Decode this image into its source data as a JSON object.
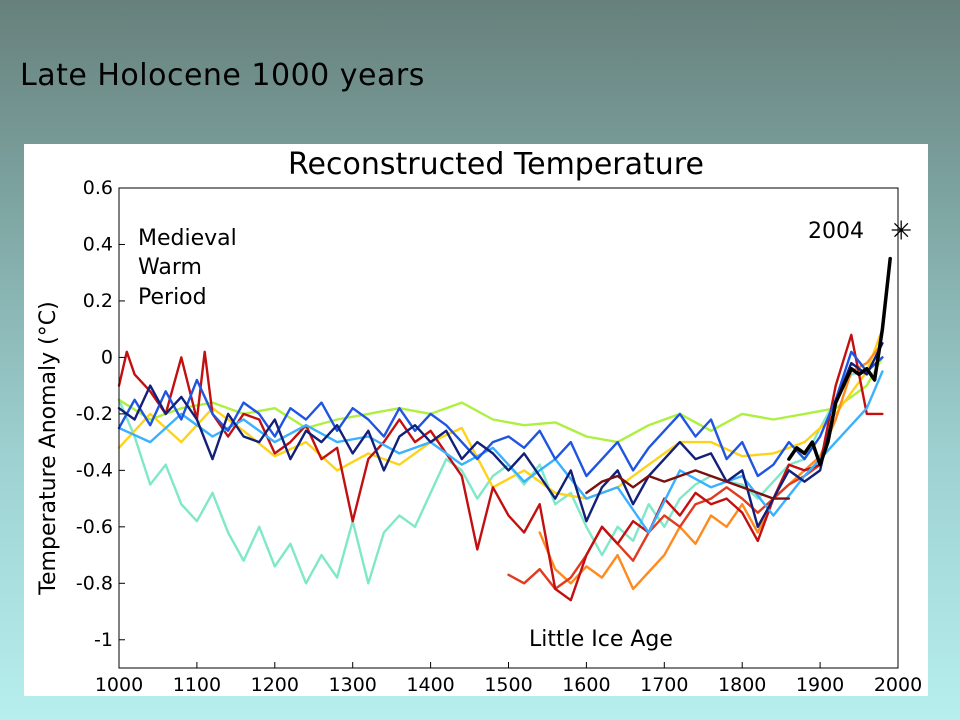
{
  "slide": {
    "title": "Late Holocene 1000 years"
  },
  "colors": {
    "background_top": "#67807c",
    "background_bottom": "#b7eeee",
    "panel": "#ffffff"
  },
  "chart_data": {
    "type": "line",
    "title": "Reconstructed Temperature",
    "xlabel": "",
    "ylabel": "Temperature Anomaly (°C)",
    "xlim": [
      1000,
      2000
    ],
    "ylim": [
      -1.1,
      0.6
    ],
    "x_ticks": [
      "1000",
      "1100",
      "1200",
      "1300",
      "1400",
      "1500",
      "1600",
      "1700",
      "1800",
      "1900",
      "2000"
    ],
    "y_ticks": [
      "0.6",
      "0.4",
      "0.2",
      "0",
      "-0.2",
      "-0.4",
      "-0.6",
      "-0.8",
      "-1"
    ],
    "grid": false,
    "annotations": {
      "medieval": [
        "Medieval",
        "Warm",
        "Period"
      ],
      "little_ice_age": "Little Ice Age",
      "marker_label": "2004",
      "marker_symbol": "✳",
      "marker_point": {
        "x": 2004,
        "y": 0.45
      }
    },
    "series": [
      {
        "color": "#7fe8c8",
        "x": [
          1000,
          1020,
          1040,
          1060,
          1080,
          1100,
          1120,
          1140,
          1160,
          1180,
          1200,
          1220,
          1240,
          1260,
          1280,
          1300,
          1320,
          1340,
          1360,
          1380,
          1400,
          1420,
          1440,
          1460,
          1480,
          1500,
          1520,
          1540,
          1560,
          1580,
          1600,
          1620,
          1640,
          1660,
          1680,
          1700,
          1720,
          1740,
          1760,
          1780,
          1800,
          1820,
          1840,
          1860,
          1880,
          1900,
          1920,
          1940,
          1960,
          1980
        ],
        "y": [
          -0.15,
          -0.28,
          -0.45,
          -0.38,
          -0.52,
          -0.58,
          -0.48,
          -0.62,
          -0.72,
          -0.6,
          -0.74,
          -0.66,
          -0.8,
          -0.7,
          -0.78,
          -0.58,
          -0.8,
          -0.62,
          -0.56,
          -0.6,
          -0.48,
          -0.36,
          -0.4,
          -0.5,
          -0.42,
          -0.38,
          -0.45,
          -0.38,
          -0.52,
          -0.48,
          -0.6,
          -0.7,
          -0.6,
          -0.65,
          -0.52,
          -0.6,
          -0.5,
          -0.45,
          -0.42,
          -0.44,
          -0.45,
          -0.5,
          -0.44,
          -0.38,
          -0.36,
          -0.25,
          -0.15,
          -0.06,
          -0.05,
          0.0
        ]
      },
      {
        "color": "#adf040",
        "x": [
          1000,
          1040,
          1080,
          1120,
          1160,
          1200,
          1240,
          1280,
          1320,
          1360,
          1400,
          1440,
          1480,
          1520,
          1560,
          1600,
          1640,
          1680,
          1720,
          1760,
          1800,
          1840,
          1880,
          1920,
          1960,
          1980
        ],
        "y": [
          -0.15,
          -0.22,
          -0.18,
          -0.16,
          -0.2,
          -0.18,
          -0.25,
          -0.22,
          -0.2,
          -0.18,
          -0.2,
          -0.16,
          -0.22,
          -0.24,
          -0.23,
          -0.28,
          -0.3,
          -0.24,
          -0.2,
          -0.26,
          -0.2,
          -0.22,
          -0.2,
          -0.18,
          -0.1,
          0.0
        ]
      },
      {
        "color": "#ffd21a",
        "x": [
          1000,
          1040,
          1080,
          1120,
          1160,
          1200,
          1240,
          1280,
          1320,
          1360,
          1400,
          1440,
          1480,
          1520,
          1560,
          1600,
          1640,
          1680,
          1720,
          1760,
          1800,
          1840,
          1880,
          1920,
          1960,
          1980
        ],
        "y": [
          -0.32,
          -0.2,
          -0.3,
          -0.18,
          -0.26,
          -0.35,
          -0.3,
          -0.4,
          -0.34,
          -0.38,
          -0.3,
          -0.25,
          -0.46,
          -0.4,
          -0.48,
          -0.5,
          -0.46,
          -0.38,
          -0.3,
          -0.3,
          -0.35,
          -0.34,
          -0.3,
          -0.2,
          -0.05,
          0.1
        ]
      },
      {
        "color": "#ff8a1f",
        "x": [
          1540,
          1560,
          1580,
          1600,
          1620,
          1640,
          1660,
          1680,
          1700,
          1720,
          1740,
          1760,
          1780,
          1800,
          1820,
          1840,
          1860,
          1880,
          1900,
          1920,
          1940,
          1960,
          1980
        ],
        "y": [
          -0.62,
          -0.75,
          -0.8,
          -0.74,
          -0.78,
          -0.7,
          -0.82,
          -0.76,
          -0.7,
          -0.6,
          -0.66,
          -0.56,
          -0.6,
          -0.52,
          -0.62,
          -0.5,
          -0.45,
          -0.4,
          -0.35,
          -0.22,
          -0.05,
          -0.02,
          0.05
        ]
      },
      {
        "color": "#e03b1f",
        "x": [
          1500,
          1520,
          1540,
          1560,
          1580,
          1600,
          1620,
          1640,
          1660,
          1680,
          1700,
          1720,
          1740,
          1760,
          1780,
          1800,
          1820,
          1840,
          1860,
          1880,
          1900
        ],
        "y": [
          -0.77,
          -0.8,
          -0.75,
          -0.82,
          -0.78,
          -0.7,
          -0.6,
          -0.66,
          -0.72,
          -0.62,
          -0.56,
          -0.6,
          -0.52,
          -0.5,
          -0.46,
          -0.5,
          -0.55,
          -0.5,
          -0.45,
          -0.42,
          -0.38
        ]
      },
      {
        "color": "#c21010",
        "x": [
          1000,
          1010,
          1020,
          1040,
          1060,
          1080,
          1100,
          1110,
          1120,
          1140,
          1160,
          1180,
          1200,
          1220,
          1240,
          1260,
          1280,
          1300,
          1320,
          1340,
          1360,
          1380,
          1400,
          1420,
          1440,
          1460,
          1480,
          1500,
          1520,
          1540,
          1560,
          1580,
          1600,
          1620,
          1640,
          1660,
          1680,
          1700,
          1720,
          1740,
          1760,
          1780,
          1800,
          1820,
          1840,
          1860,
          1880,
          1900,
          1920,
          1940,
          1960,
          1980
        ],
        "y": [
          -0.1,
          0.02,
          -0.06,
          -0.12,
          -0.2,
          0.0,
          -0.22,
          0.02,
          -0.2,
          -0.28,
          -0.2,
          -0.22,
          -0.34,
          -0.3,
          -0.24,
          -0.36,
          -0.32,
          -0.58,
          -0.36,
          -0.3,
          -0.22,
          -0.3,
          -0.26,
          -0.34,
          -0.42,
          -0.68,
          -0.46,
          -0.56,
          -0.62,
          -0.52,
          -0.82,
          -0.86,
          -0.7,
          -0.6,
          -0.66,
          -0.58,
          -0.62,
          -0.5,
          -0.56,
          -0.48,
          -0.52,
          -0.5,
          -0.55,
          -0.65,
          -0.5,
          -0.38,
          -0.4,
          -0.38,
          -0.1,
          0.08,
          -0.2,
          -0.2
        ]
      },
      {
        "color": "#3ab0ff",
        "x": [
          1000,
          1040,
          1080,
          1120,
          1160,
          1200,
          1240,
          1280,
          1320,
          1360,
          1400,
          1440,
          1480,
          1520,
          1560,
          1600,
          1640,
          1680,
          1720,
          1760,
          1800,
          1840,
          1880,
          1920,
          1960,
          1980
        ],
        "y": [
          -0.25,
          -0.3,
          -0.2,
          -0.28,
          -0.22,
          -0.3,
          -0.24,
          -0.3,
          -0.28,
          -0.34,
          -0.3,
          -0.38,
          -0.32,
          -0.44,
          -0.36,
          -0.5,
          -0.46,
          -0.62,
          -0.4,
          -0.46,
          -0.42,
          -0.56,
          -0.42,
          -0.3,
          -0.18,
          -0.05
        ]
      },
      {
        "color": "#1f55e0",
        "x": [
          1000,
          1020,
          1040,
          1060,
          1080,
          1100,
          1120,
          1140,
          1160,
          1180,
          1200,
          1220,
          1240,
          1260,
          1280,
          1300,
          1320,
          1340,
          1360,
          1380,
          1400,
          1420,
          1440,
          1460,
          1480,
          1500,
          1520,
          1540,
          1560,
          1580,
          1600,
          1620,
          1640,
          1660,
          1680,
          1700,
          1720,
          1740,
          1760,
          1780,
          1800,
          1820,
          1840,
          1860,
          1880,
          1900,
          1920,
          1940,
          1960,
          1980
        ],
        "y": [
          -0.25,
          -0.15,
          -0.24,
          -0.12,
          -0.22,
          -0.08,
          -0.2,
          -0.26,
          -0.16,
          -0.2,
          -0.28,
          -0.18,
          -0.22,
          -0.16,
          -0.26,
          -0.18,
          -0.22,
          -0.28,
          -0.18,
          -0.26,
          -0.2,
          -0.24,
          -0.3,
          -0.36,
          -0.3,
          -0.28,
          -0.32,
          -0.26,
          -0.36,
          -0.3,
          -0.42,
          -0.36,
          -0.3,
          -0.4,
          -0.32,
          -0.26,
          -0.2,
          -0.28,
          -0.22,
          -0.36,
          -0.3,
          -0.42,
          -0.38,
          -0.3,
          -0.36,
          -0.28,
          -0.15,
          0.02,
          -0.05,
          0.0
        ]
      },
      {
        "color": "#12207a",
        "x": [
          1000,
          1020,
          1040,
          1060,
          1080,
          1100,
          1120,
          1140,
          1160,
          1180,
          1200,
          1220,
          1240,
          1260,
          1280,
          1300,
          1320,
          1340,
          1360,
          1380,
          1400,
          1420,
          1440,
          1460,
          1480,
          1500,
          1520,
          1540,
          1560,
          1580,
          1600,
          1620,
          1640,
          1660,
          1680,
          1700,
          1720,
          1740,
          1760,
          1780,
          1800,
          1820,
          1840,
          1860,
          1880,
          1900,
          1920,
          1940,
          1960,
          1980
        ],
        "y": [
          -0.18,
          -0.22,
          -0.1,
          -0.2,
          -0.14,
          -0.22,
          -0.36,
          -0.2,
          -0.28,
          -0.3,
          -0.22,
          -0.36,
          -0.26,
          -0.3,
          -0.24,
          -0.34,
          -0.26,
          -0.4,
          -0.28,
          -0.24,
          -0.3,
          -0.26,
          -0.36,
          -0.3,
          -0.34,
          -0.4,
          -0.34,
          -0.42,
          -0.5,
          -0.4,
          -0.58,
          -0.46,
          -0.4,
          -0.52,
          -0.42,
          -0.36,
          -0.3,
          -0.36,
          -0.34,
          -0.44,
          -0.4,
          -0.6,
          -0.5,
          -0.4,
          -0.44,
          -0.4,
          -0.16,
          -0.02,
          -0.06,
          0.05
        ]
      },
      {
        "color": "#7a1010",
        "x": [
          1600,
          1620,
          1640,
          1660,
          1680,
          1700,
          1720,
          1740,
          1760,
          1780,
          1800,
          1820,
          1840,
          1860
        ],
        "y": [
          -0.48,
          -0.44,
          -0.42,
          -0.46,
          -0.42,
          -0.44,
          -0.42,
          -0.4,
          -0.42,
          -0.44,
          -0.46,
          -0.48,
          -0.5,
          -0.5
        ]
      },
      {
        "color": "#000000",
        "width": 3.5,
        "x": [
          1860,
          1870,
          1880,
          1890,
          1900,
          1910,
          1920,
          1930,
          1940,
          1950,
          1960,
          1970,
          1980,
          1990
        ],
        "y": [
          -0.36,
          -0.32,
          -0.34,
          -0.3,
          -0.38,
          -0.3,
          -0.16,
          -0.1,
          -0.04,
          -0.06,
          -0.04,
          -0.08,
          0.1,
          0.35
        ]
      }
    ]
  }
}
